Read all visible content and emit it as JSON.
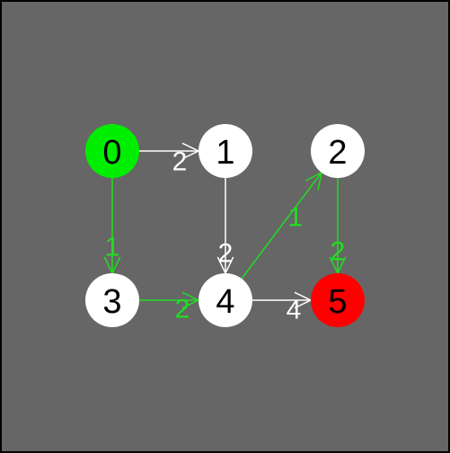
{
  "colors": {
    "background": "#666666",
    "border": "#000000",
    "node_default": "#ffffff",
    "node_start": "#00ee00",
    "node_end": "#ff0000",
    "label": "#000000",
    "edge_default": "#ffffff",
    "edge_path": "#22dd22"
  },
  "graph": {
    "nodes": [
      {
        "id": 0,
        "label": "0",
        "state": "start"
      },
      {
        "id": 1,
        "label": "1",
        "state": "default"
      },
      {
        "id": 2,
        "label": "2",
        "state": "default"
      },
      {
        "id": 3,
        "label": "3",
        "state": "default"
      },
      {
        "id": 4,
        "label": "4",
        "state": "default"
      },
      {
        "id": 5,
        "label": "5",
        "state": "end"
      }
    ],
    "edges": [
      {
        "from": 0,
        "to": 1,
        "weight": "2",
        "on_path": false
      },
      {
        "from": 0,
        "to": 3,
        "weight": "1",
        "on_path": true
      },
      {
        "from": 1,
        "to": 4,
        "weight": "2",
        "on_path": false
      },
      {
        "from": 3,
        "to": 4,
        "weight": "2",
        "on_path": true
      },
      {
        "from": 4,
        "to": 2,
        "weight": "1",
        "on_path": true
      },
      {
        "from": 4,
        "to": 5,
        "weight": "4",
        "on_path": false
      },
      {
        "from": 2,
        "to": 5,
        "weight": "2",
        "on_path": true
      }
    ]
  }
}
